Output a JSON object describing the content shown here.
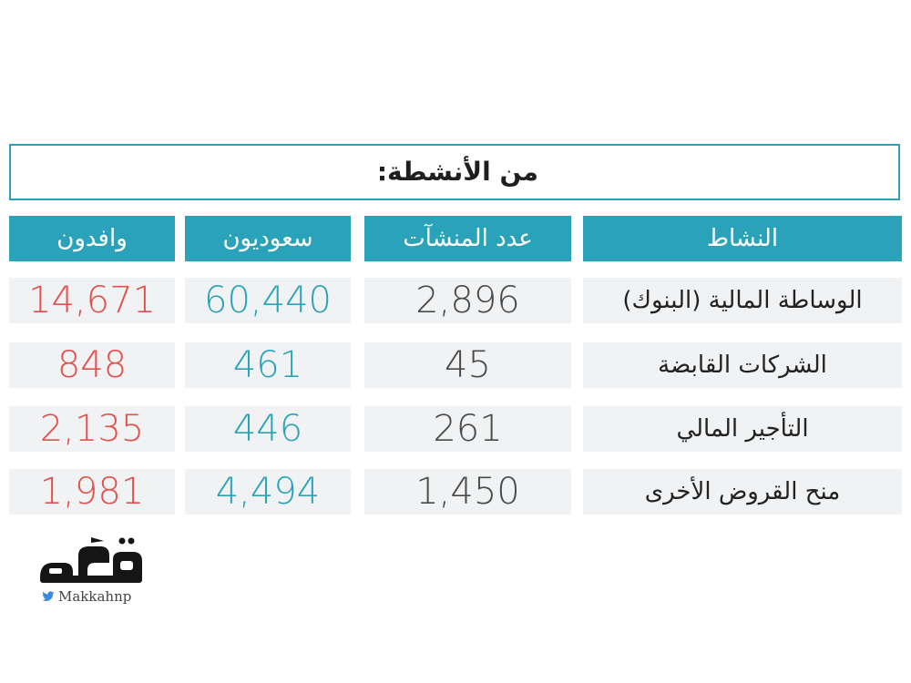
{
  "title": "من الأنشطة:",
  "headers": {
    "activity": "النشاط",
    "establishments": "عدد المنشآت",
    "saudis": "سعوديون",
    "expats": "وافدون"
  },
  "rows": [
    {
      "activity": "الوساطة المالية (البنوك)",
      "establishments": "2,896",
      "saudis": "60,440",
      "expats": "14,671"
    },
    {
      "activity": "الشركات القابضة",
      "establishments": "45",
      "saudis": "461",
      "expats": "848"
    },
    {
      "activity": "التأجير المالي",
      "establishments": "261",
      "saudis": "446",
      "expats": "2,135"
    },
    {
      "activity": "منح القروض الأخرى",
      "establishments": "1,450",
      "saudis": "4,494",
      "expats": "1,981"
    }
  ],
  "logo": {
    "name": "مكة",
    "handle": "Makkahnp",
    "icon": "twitter-bird-icon"
  },
  "colors": {
    "accent": "#2aa3ba",
    "expats": "#e2504c",
    "count": "#4a4a4a",
    "row_bg": "#f1f2f3"
  }
}
